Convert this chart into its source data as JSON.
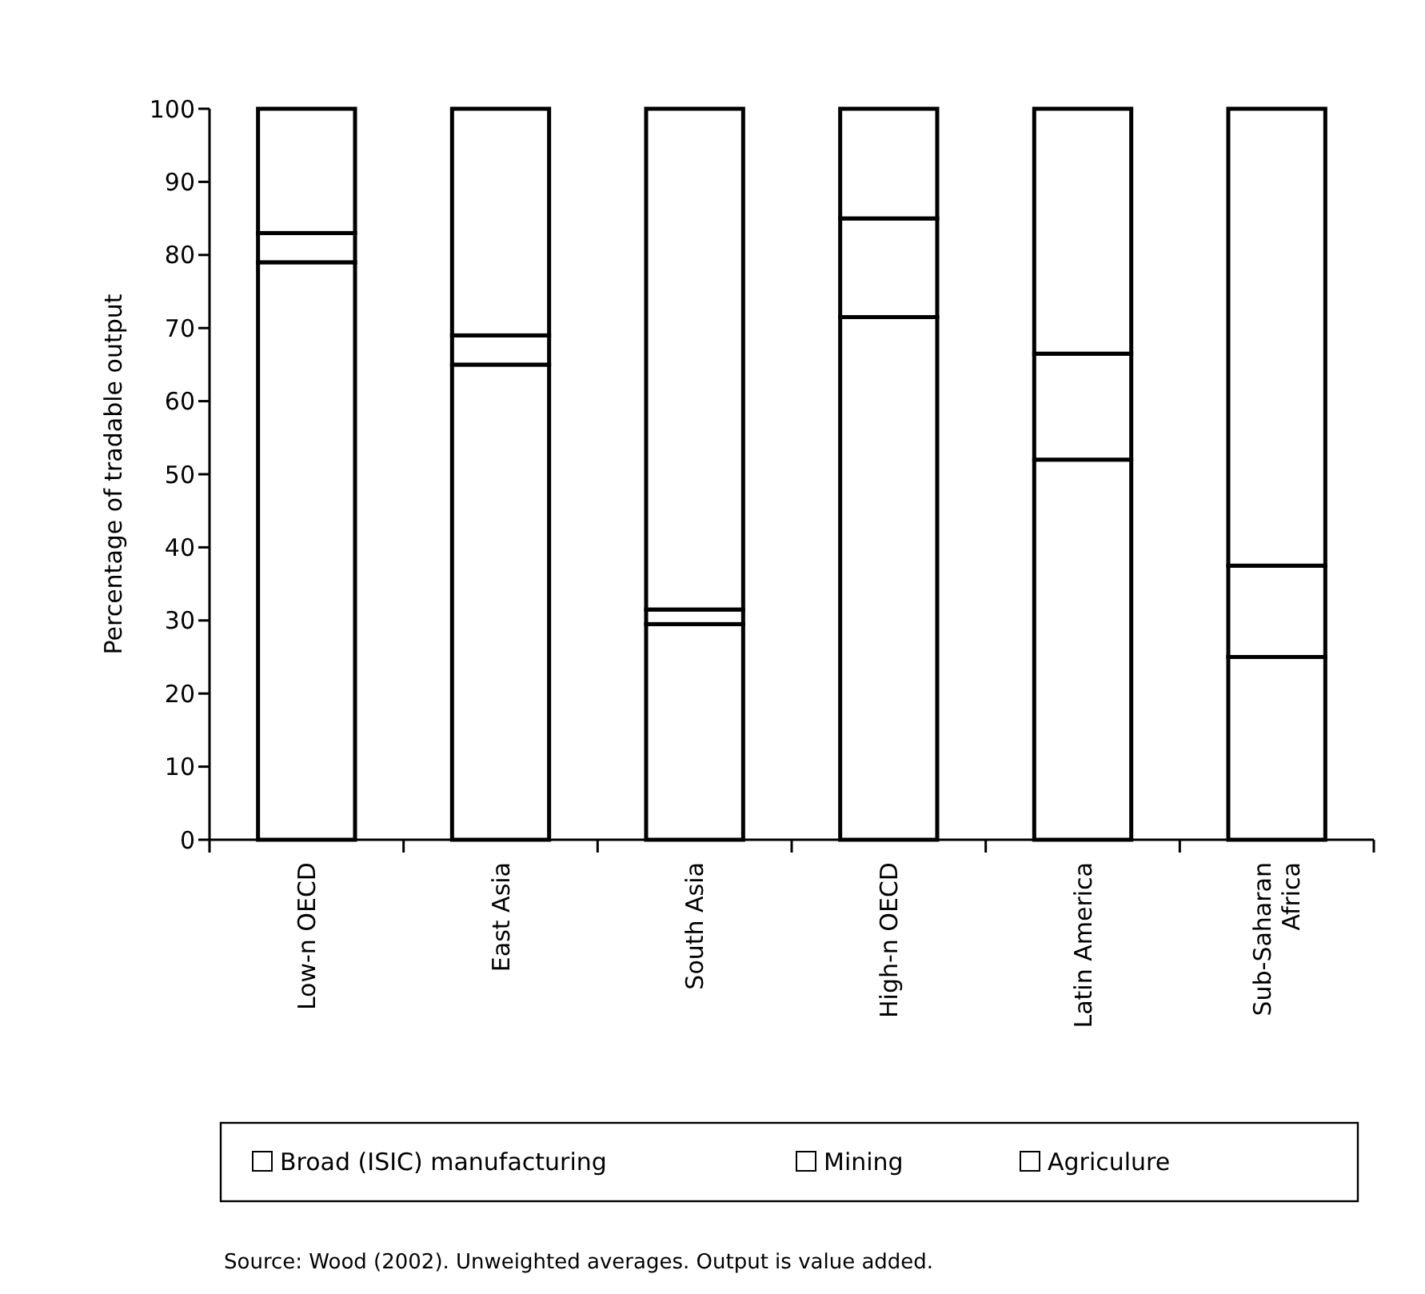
{
  "chart_data": {
    "type": "bar",
    "stacked": true,
    "ylabel": "Percentage of tradable output",
    "categories": [
      "Low-n OECD",
      "East Asia",
      "South Asia",
      "High-n OECD",
      "Latin America",
      "Sub-Saharan Africa"
    ],
    "series": [
      {
        "name": "Broad (ISIC) manufacturing",
        "color": "#ffffff",
        "values": [
          79,
          65,
          29.5,
          71.5,
          52,
          25
        ]
      },
      {
        "name": "Mining",
        "color": "#ffffff",
        "values": [
          4,
          4,
          2,
          13.5,
          14.5,
          12.5
        ]
      },
      {
        "name": "Agriculure",
        "color": "#ffffff",
        "values": [
          17,
          31,
          68.5,
          15,
          33.5,
          62.5
        ]
      }
    ],
    "ylim": [
      0,
      100
    ],
    "yticks": [
      0,
      10,
      20,
      30,
      40,
      50,
      60,
      70,
      80,
      90,
      100
    ],
    "grid": false,
    "legend": "bottom",
    "annotations": [
      "Source: Wood (2002). Unweighted averages. Output is value added."
    ]
  }
}
